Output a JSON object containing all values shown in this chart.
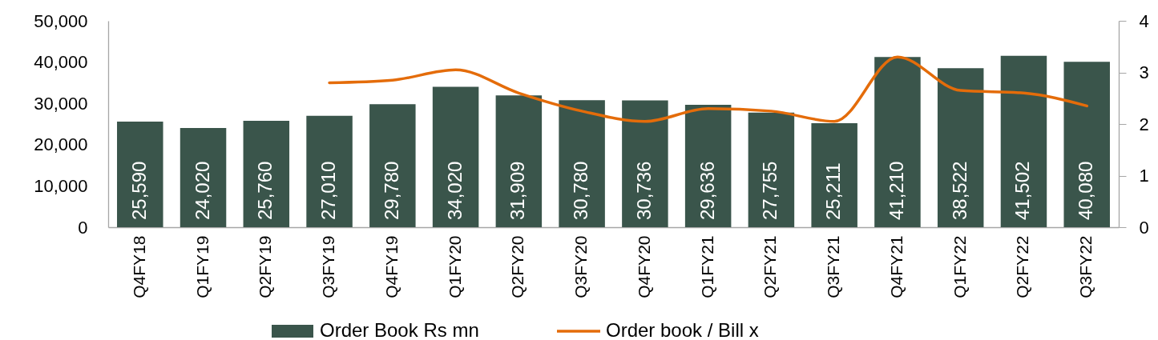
{
  "chart_data": {
    "type": "bar",
    "categories": [
      "Q4FY18",
      "Q1FY19",
      "Q2FY19",
      "Q3FY19",
      "Q4FY19",
      "Q1FY20",
      "Q2FY20",
      "Q3FY20",
      "Q4FY20",
      "Q1FY21",
      "Q2FY21",
      "Q3FY21",
      "Q4FY21",
      "Q1FY22",
      "Q2FY22",
      "Q3FY22"
    ],
    "series": [
      {
        "name": "Order Book Rs mn",
        "color": "#3a554b",
        "values": [
          25590,
          24020,
          25760,
          27010,
          29780,
          34020,
          31909,
          30780,
          30736,
          29636,
          27755,
          25211,
          41210,
          38522,
          41502,
          40080
        ],
        "value_labels": [
          "25,590",
          "24,020",
          "25,760",
          "27,010",
          "29,780",
          "34,020",
          "31,909",
          "30,780",
          "30,736",
          "29,636",
          "27,755",
          "25,211",
          "41,210",
          "38,522",
          "41,502",
          "40,080"
        ]
      },
      {
        "name": "Order book / Bill x",
        "type": "line",
        "axis": "y2",
        "color": "#e46c0a",
        "values": [
          null,
          null,
          null,
          2.8,
          2.85,
          3.05,
          2.6,
          2.25,
          2.05,
          2.3,
          2.25,
          2.05,
          3.3,
          2.65,
          2.6,
          2.35
        ]
      }
    ],
    "ylim": [
      0,
      50000
    ],
    "yticks": [
      0,
      {
        "value": 10000,
        "label": "10,000"
      },
      {
        "value": 20000,
        "label": "20,000"
      },
      {
        "value": 30000,
        "label": "30,000"
      },
      {
        "value": 40000,
        "label": "40,000"
      },
      {
        "value": 50000,
        "label": "50,000"
      }
    ],
    "y2lim": [
      0,
      4
    ],
    "y2ticks": [
      0,
      1,
      2,
      3,
      4
    ],
    "legend": "bottom"
  }
}
